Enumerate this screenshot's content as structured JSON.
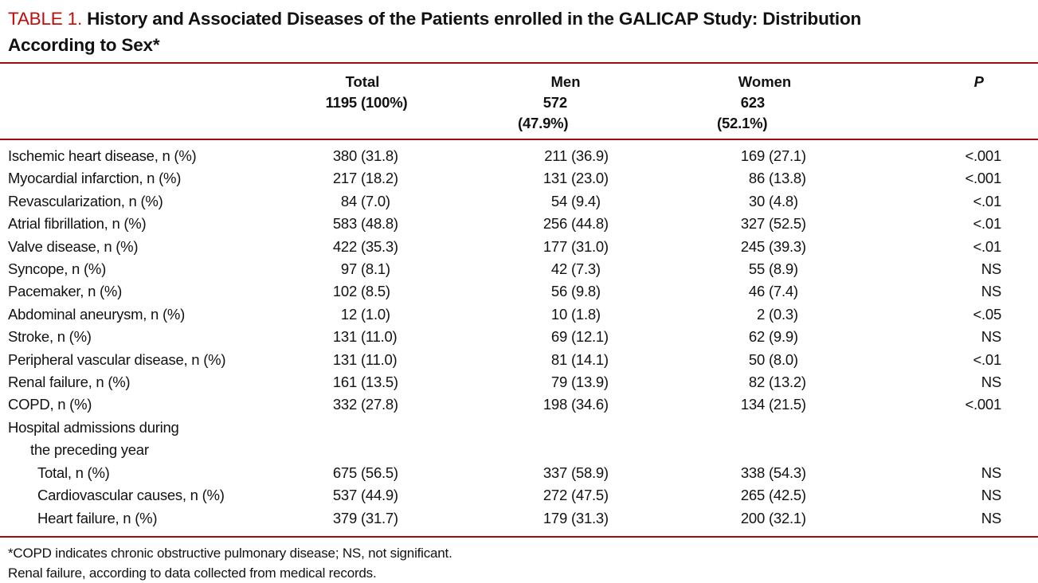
{
  "title": {
    "label": "TABLE 1.",
    "text": " History and Associated Diseases of the Patients enrolled in the GALICAP Study: Distribution According to Sex*"
  },
  "colors": {
    "rule_red": "#9e0b12",
    "title_red": "#c00d0d",
    "text": "#121212"
  },
  "table": {
    "columns": [
      {
        "key": "total",
        "label": "Total",
        "n": "1195",
        "pct": "(100%)"
      },
      {
        "key": "men",
        "label": "Men",
        "n": "572",
        "pct": "(47.9%)"
      },
      {
        "key": "women",
        "label": "Women",
        "n": "623",
        "pct": "(52.1%)"
      },
      {
        "key": "p",
        "label": "P"
      }
    ],
    "rows": [
      {
        "label": "Ischemic heart disease, n (%)",
        "indent": 0,
        "total": {
          "n": "380",
          "pct": "(31.8)"
        },
        "men": {
          "n": "211",
          "pct": "(36.9)"
        },
        "women": {
          "n": "169",
          "pct": "(27.1)"
        },
        "p": "<.001"
      },
      {
        "label": "Myocardial infarction, n (%)",
        "indent": 0,
        "total": {
          "n": "217",
          "pct": "(18.2)"
        },
        "men": {
          "n": "131",
          "pct": "(23.0)"
        },
        "women": {
          "n": "86",
          "pct": "(13.8)"
        },
        "p": "<.001"
      },
      {
        "label": "Revascularization, n (%)",
        "indent": 0,
        "total": {
          "n": "84",
          "pct": "(7.0)"
        },
        "men": {
          "n": "54",
          "pct": "(9.4)"
        },
        "women": {
          "n": "30",
          "pct": "(4.8)"
        },
        "p": "<.01"
      },
      {
        "label": "Atrial fibrillation, n (%)",
        "indent": 0,
        "total": {
          "n": "583",
          "pct": "(48.8)"
        },
        "men": {
          "n": "256",
          "pct": "(44.8)"
        },
        "women": {
          "n": "327",
          "pct": "(52.5)"
        },
        "p": "<.01"
      },
      {
        "label": "Valve disease, n (%)",
        "indent": 0,
        "total": {
          "n": "422",
          "pct": "(35.3)"
        },
        "men": {
          "n": "177",
          "pct": "(31.0)"
        },
        "women": {
          "n": "245",
          "pct": "(39.3)"
        },
        "p": "<.01"
      },
      {
        "label": "Syncope, n (%)",
        "indent": 0,
        "total": {
          "n": "97",
          "pct": "(8.1)"
        },
        "men": {
          "n": "42",
          "pct": "(7.3)"
        },
        "women": {
          "n": "55",
          "pct": "(8.9)"
        },
        "p": "NS"
      },
      {
        "label": "Pacemaker, n (%)",
        "indent": 0,
        "total": {
          "n": "102",
          "pct": "(8.5)"
        },
        "men": {
          "n": "56",
          "pct": "(9.8)"
        },
        "women": {
          "n": "46",
          "pct": "(7.4)"
        },
        "p": "NS"
      },
      {
        "label": "Abdominal aneurysm, n (%)",
        "indent": 0,
        "total": {
          "n": "12",
          "pct": "(1.0)"
        },
        "men": {
          "n": "10",
          "pct": "(1.8)"
        },
        "women": {
          "n": "2",
          "pct": "(0.3)"
        },
        "p": "<.05"
      },
      {
        "label": "Stroke, n (%)",
        "indent": 0,
        "total": {
          "n": "131",
          "pct": "(11.0)"
        },
        "men": {
          "n": "69",
          "pct": "(12.1)"
        },
        "women": {
          "n": "62",
          "pct": "(9.9)"
        },
        "p": "NS"
      },
      {
        "label": "Peripheral vascular disease, n (%)",
        "indent": 0,
        "total": {
          "n": "131",
          "pct": "(11.0)"
        },
        "men": {
          "n": "81",
          "pct": "(14.1)"
        },
        "women": {
          "n": "50",
          "pct": "(8.0)"
        },
        "p": "<.01"
      },
      {
        "label": "Renal failure, n (%)",
        "indent": 0,
        "total": {
          "n": "161",
          "pct": "(13.5)"
        },
        "men": {
          "n": "79",
          "pct": "(13.9)"
        },
        "women": {
          "n": "82",
          "pct": "(13.2)"
        },
        "p": "NS"
      },
      {
        "label": "COPD, n (%)",
        "indent": 0,
        "total": {
          "n": "332",
          "pct": "(27.8)"
        },
        "men": {
          "n": "198",
          "pct": "(34.6)"
        },
        "women": {
          "n": "134",
          "pct": "(21.5)"
        },
        "p": "<.001"
      },
      {
        "label": "Hospital admissions during",
        "indent": 0
      },
      {
        "label": "the preceding year",
        "indent": 1
      },
      {
        "label": "Total, n (%)",
        "indent": 2,
        "total": {
          "n": "675",
          "pct": "(56.5)"
        },
        "men": {
          "n": "337",
          "pct": "(58.9)"
        },
        "women": {
          "n": "338",
          "pct": "(54.3)"
        },
        "p": "NS"
      },
      {
        "label": "Cardiovascular causes, n (%)",
        "indent": 2,
        "total": {
          "n": "537",
          "pct": "(44.9)"
        },
        "men": {
          "n": "272",
          "pct": "(47.5)"
        },
        "women": {
          "n": "265",
          "pct": "(42.5)"
        },
        "p": "NS"
      },
      {
        "label": "Heart failure, n (%)",
        "indent": 2,
        "total": {
          "n": "379",
          "pct": "(31.7)"
        },
        "men": {
          "n": "179",
          "pct": "(31.3)"
        },
        "women": {
          "n": "200",
          "pct": "(32.1)"
        },
        "p": "NS"
      }
    ]
  },
  "footnotes": [
    "*COPD indicates chronic obstructive pulmonary disease; NS, not significant.",
    "Renal failure, according to data collected from medical records."
  ]
}
